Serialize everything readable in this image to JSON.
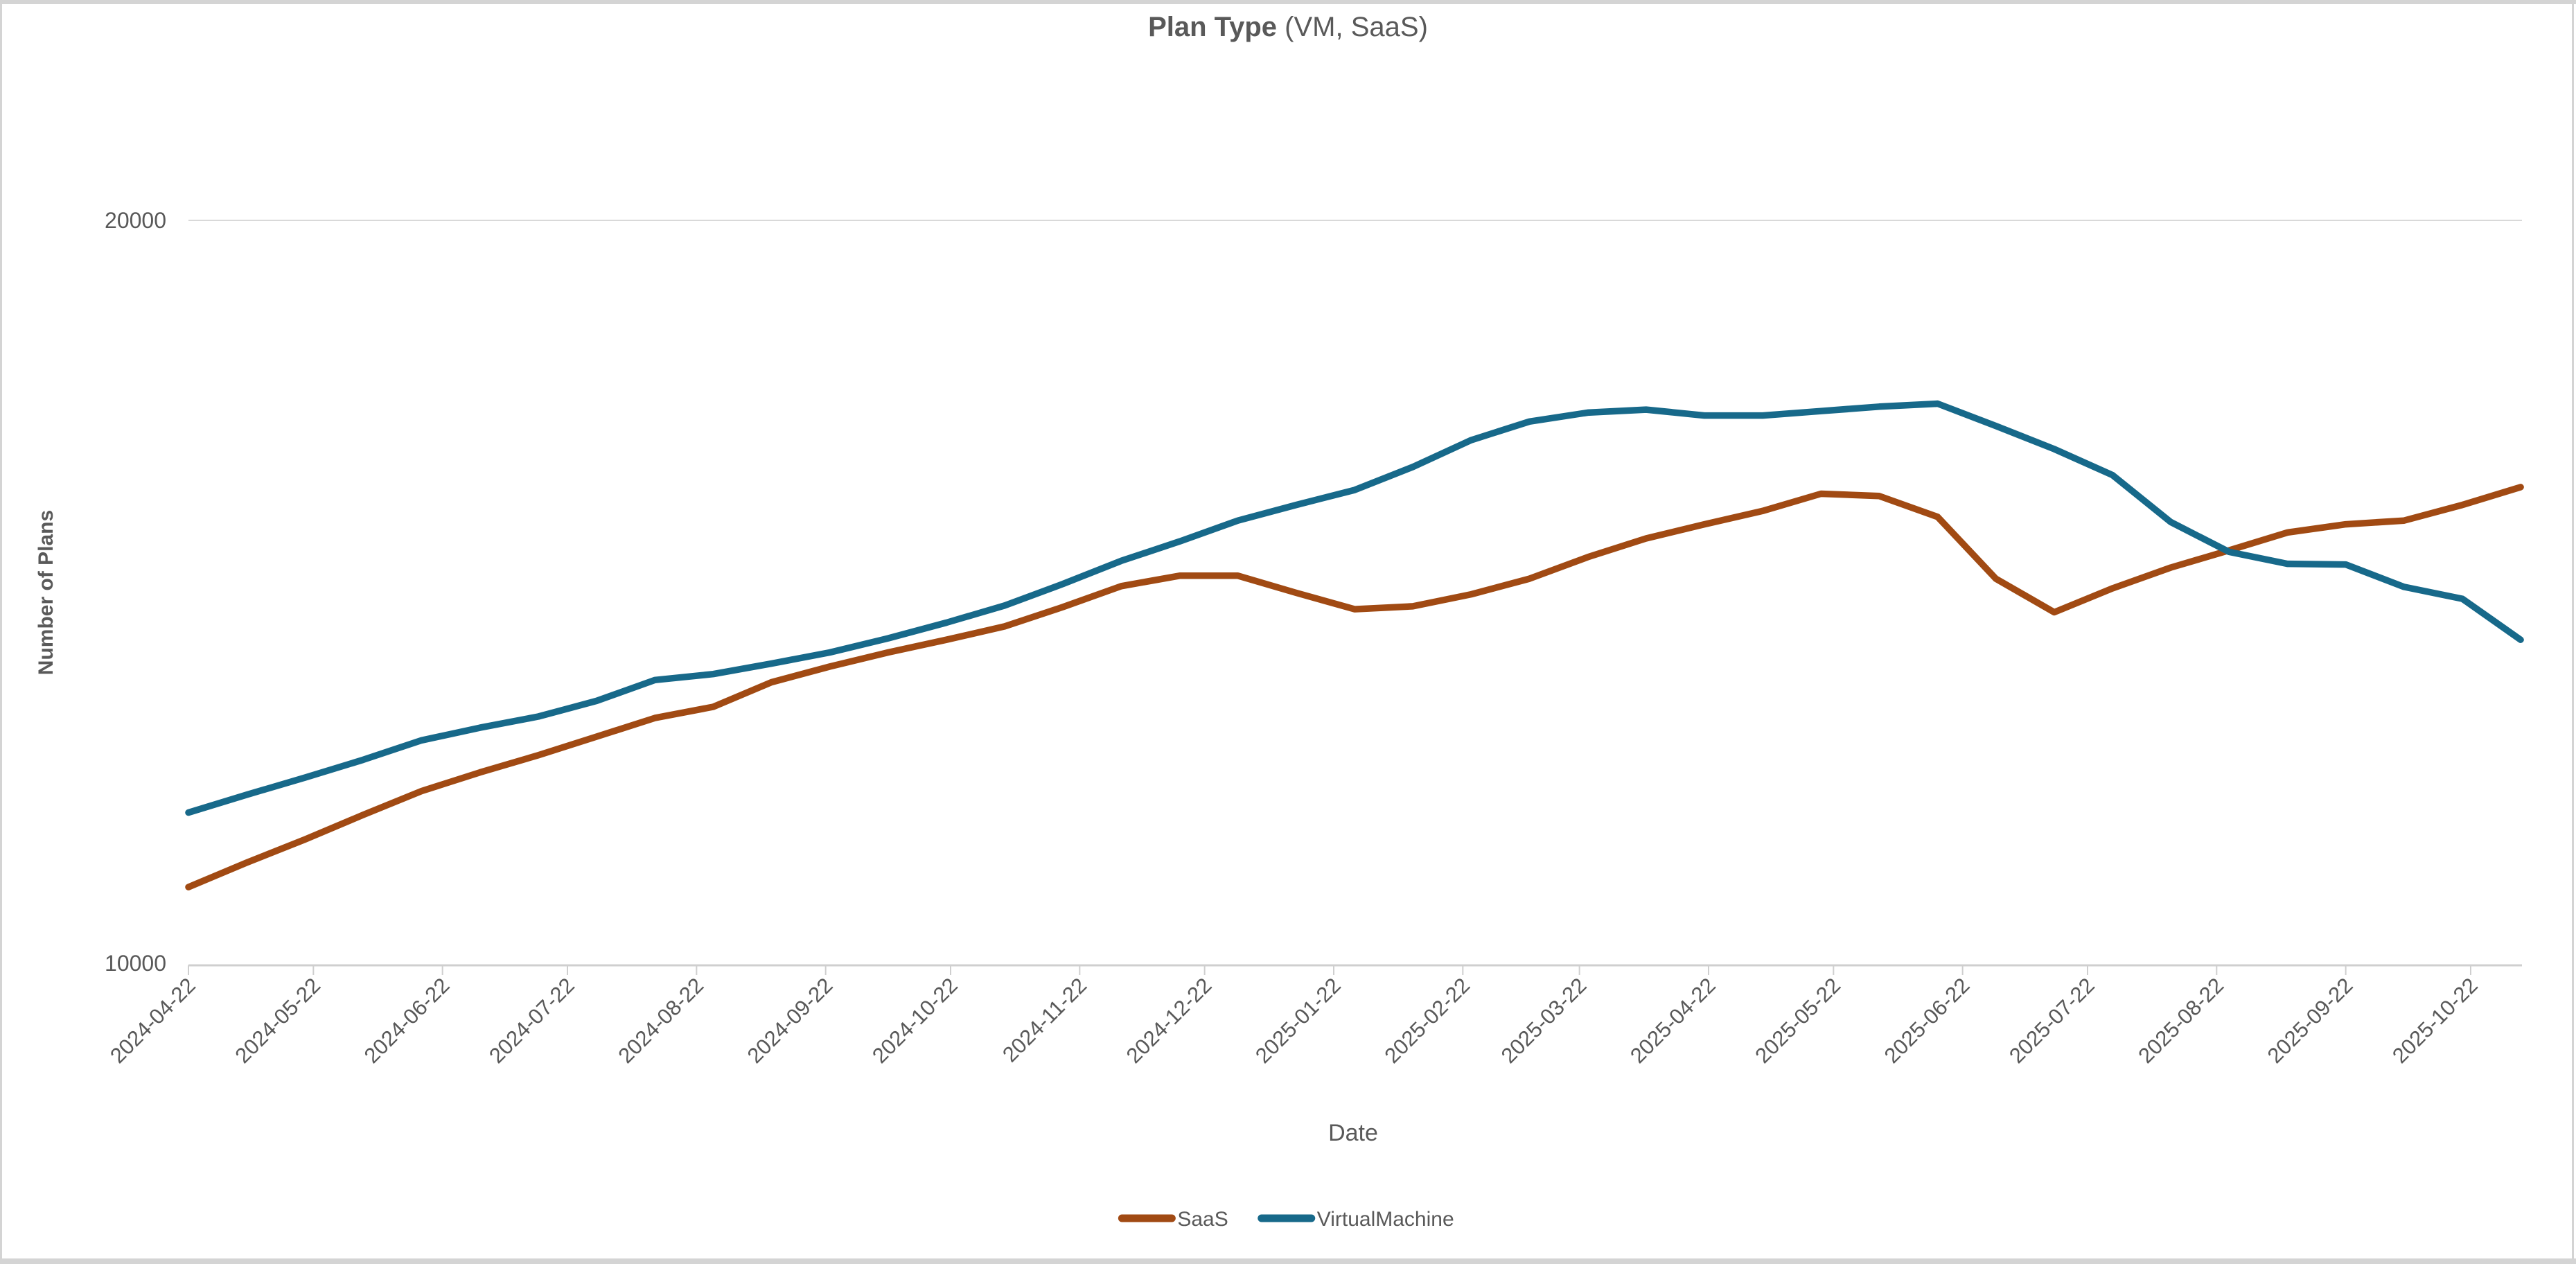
{
  "chart_data": {
    "type": "line",
    "title": "Plan Type (VM, SaaS)",
    "title_bold": "Plan Type",
    "title_suffix": " (VM, SaaS)",
    "xlabel": "Date",
    "ylabel": "Number of Plans",
    "ylim": [
      10000,
      20000
    ],
    "grid": "horizontal gridline at 20000 only",
    "legend_position": "bottom-center",
    "y_ticks": [
      {
        "value": 20000,
        "label": "20000"
      },
      {
        "value": 10000,
        "label": "10000"
      }
    ],
    "x_tick_labels": [
      "2024-04-22",
      "2024-05-22",
      "2024-06-22",
      "2024-07-22",
      "2024-08-22",
      "2024-09-22",
      "2024-10-22",
      "2024-11-22",
      "2024-12-22",
      "2025-01-22",
      "2025-02-22",
      "2025-03-22",
      "2025-04-22",
      "2025-05-22",
      "2025-06-22",
      "2025-07-22",
      "2025-08-22",
      "2025-09-22",
      "2025-10-22"
    ],
    "x": [
      "2024-04-22",
      "2024-05-06",
      "2024-05-20",
      "2024-06-03",
      "2024-06-17",
      "2024-07-01",
      "2024-07-15",
      "2024-07-29",
      "2024-08-12",
      "2024-08-26",
      "2024-09-09",
      "2024-09-23",
      "2024-10-07",
      "2024-10-21",
      "2024-11-04",
      "2024-11-18",
      "2024-12-02",
      "2024-12-16",
      "2024-12-30",
      "2025-01-13",
      "2025-01-27",
      "2025-02-10",
      "2025-02-24",
      "2025-03-10",
      "2025-03-24",
      "2025-04-07",
      "2025-04-21",
      "2025-05-05",
      "2025-05-19",
      "2025-06-02",
      "2025-06-16",
      "2025-06-30",
      "2025-07-14",
      "2025-07-28",
      "2025-08-11",
      "2025-08-25",
      "2025-09-08",
      "2025-09-22",
      "2025-10-06",
      "2025-10-20",
      "2025-11-03"
    ],
    "series": [
      {
        "name": "SaaS",
        "color": "#a14a13",
        "values": [
          11050,
          11380,
          11690,
          12020,
          12340,
          12590,
          12820,
          13070,
          13320,
          13470,
          13800,
          14010,
          14200,
          14370,
          14550,
          14810,
          15090,
          15230,
          15230,
          15000,
          14780,
          14820,
          14980,
          15190,
          15480,
          15730,
          15920,
          16100,
          16330,
          16300,
          16020,
          15190,
          14740,
          15060,
          15340,
          15570,
          15810,
          15920,
          15970,
          16180,
          16420
        ]
      },
      {
        "name": "VirtualMachine",
        "color": "#17698a",
        "values": [
          12050,
          12290,
          12520,
          12760,
          13020,
          13190,
          13340,
          13550,
          13830,
          13910,
          14050,
          14200,
          14390,
          14600,
          14830,
          15120,
          15430,
          15690,
          15970,
          16180,
          16380,
          16690,
          17050,
          17300,
          17420,
          17460,
          17380,
          17380,
          17440,
          17500,
          17540,
          17240,
          16930,
          16580,
          15950,
          15550,
          15390,
          15380,
          15080,
          14920,
          14370
        ]
      }
    ]
  },
  "colors": {
    "text": "#595959",
    "gridline": "#d9d9d9",
    "axis": "#cfcfcf",
    "window_edge": "#d4d4d4",
    "background": "#ffffff"
  }
}
